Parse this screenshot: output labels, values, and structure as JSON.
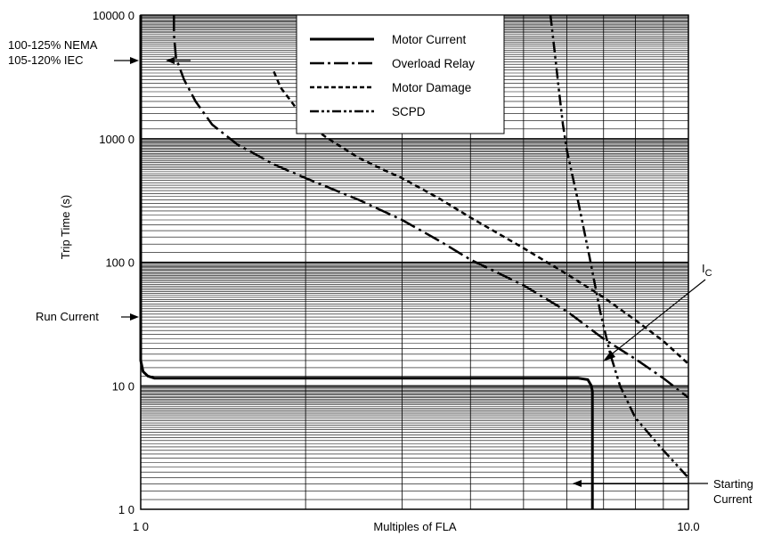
{
  "chart_data": {
    "type": "line",
    "title": "",
    "xlabel": "Multiples of FLA",
    "ylabel": "Trip Time (s)",
    "x_scale": "log",
    "y_scale": "log",
    "xlim": [
      1,
      10
    ],
    "ylim": [
      1,
      10000
    ],
    "grid": true,
    "legend_position": "top-center",
    "x_tick_labels": [
      {
        "value": 1,
        "label": "1 0"
      },
      {
        "value": 10,
        "label": "10.0"
      }
    ],
    "y_tick_labels": [
      {
        "value": 1,
        "label": "1 0"
      },
      {
        "value": 10,
        "label": "10 0"
      },
      {
        "value": 100,
        "label": "100 0"
      },
      {
        "value": 1000,
        "label": "1000 0"
      },
      {
        "value": 10000,
        "label": "10000 0"
      }
    ],
    "series": [
      {
        "name": "Motor Current",
        "style": "solid",
        "points": [
          [
            1.0,
            10000
          ],
          [
            1.0,
            16
          ],
          [
            1.01,
            13
          ],
          [
            1.03,
            12
          ],
          [
            1.06,
            11.5
          ],
          [
            1.2,
            11.5
          ],
          [
            3,
            11.5
          ],
          [
            6.3,
            11.5
          ],
          [
            6.55,
            11.2
          ],
          [
            6.65,
            10
          ],
          [
            6.68,
            9
          ],
          [
            6.68,
            1
          ]
        ]
      },
      {
        "name": "Overload Relay",
        "style": "dash-dot",
        "points": [
          [
            1.15,
            10000
          ],
          [
            1.15,
            7000
          ],
          [
            1.16,
            4500
          ],
          [
            1.2,
            3000
          ],
          [
            1.26,
            2000
          ],
          [
            1.35,
            1300
          ],
          [
            1.5,
            900
          ],
          [
            1.75,
            620
          ],
          [
            2.0,
            480
          ],
          [
            2.5,
            320
          ],
          [
            3.0,
            220
          ],
          [
            3.5,
            150
          ],
          [
            4.0,
            105
          ],
          [
            5.0,
            65
          ],
          [
            6.0,
            40
          ],
          [
            7.0,
            24
          ],
          [
            8.0,
            16.5
          ],
          [
            9.0,
            11.5
          ],
          [
            10.0,
            8
          ]
        ]
      },
      {
        "name": "Motor Damage",
        "style": "dashed",
        "points": [
          [
            1.75,
            3500
          ],
          [
            1.8,
            2600
          ],
          [
            1.9,
            1900
          ],
          [
            2.0,
            1350
          ],
          [
            2.2,
            1000
          ],
          [
            2.5,
            700
          ],
          [
            2.8,
            550
          ],
          [
            3.0,
            480
          ],
          [
            3.5,
            330
          ],
          [
            4.0,
            230
          ],
          [
            5.0,
            130
          ],
          [
            6.0,
            80
          ],
          [
            7.0,
            52
          ],
          [
            8.0,
            34
          ],
          [
            9.0,
            23
          ],
          [
            10.0,
            15
          ]
        ]
      },
      {
        "name": "SCPD",
        "style": "dash-dot-dot",
        "points": [
          [
            5.6,
            10000
          ],
          [
            5.7,
            5000
          ],
          [
            5.8,
            2500
          ],
          [
            5.9,
            1300
          ],
          [
            6.0,
            800
          ],
          [
            6.3,
            300
          ],
          [
            6.6,
            110
          ],
          [
            6.9,
            40
          ],
          [
            7.2,
            18
          ],
          [
            7.5,
            10
          ],
          [
            8.0,
            5.5
          ],
          [
            9.0,
            3
          ],
          [
            10.0,
            1.8
          ]
        ]
      }
    ],
    "annotations": [
      {
        "id": "nema",
        "lines": [
          "100-125% NEMA",
          "105-120% IEC"
        ]
      },
      {
        "id": "run",
        "lines": [
          "Run Current"
        ]
      },
      {
        "id": "ic",
        "lines": [
          "I"
        ],
        "subscript": "C"
      },
      {
        "id": "start",
        "lines": [
          "Starting",
          "Current"
        ]
      }
    ]
  }
}
